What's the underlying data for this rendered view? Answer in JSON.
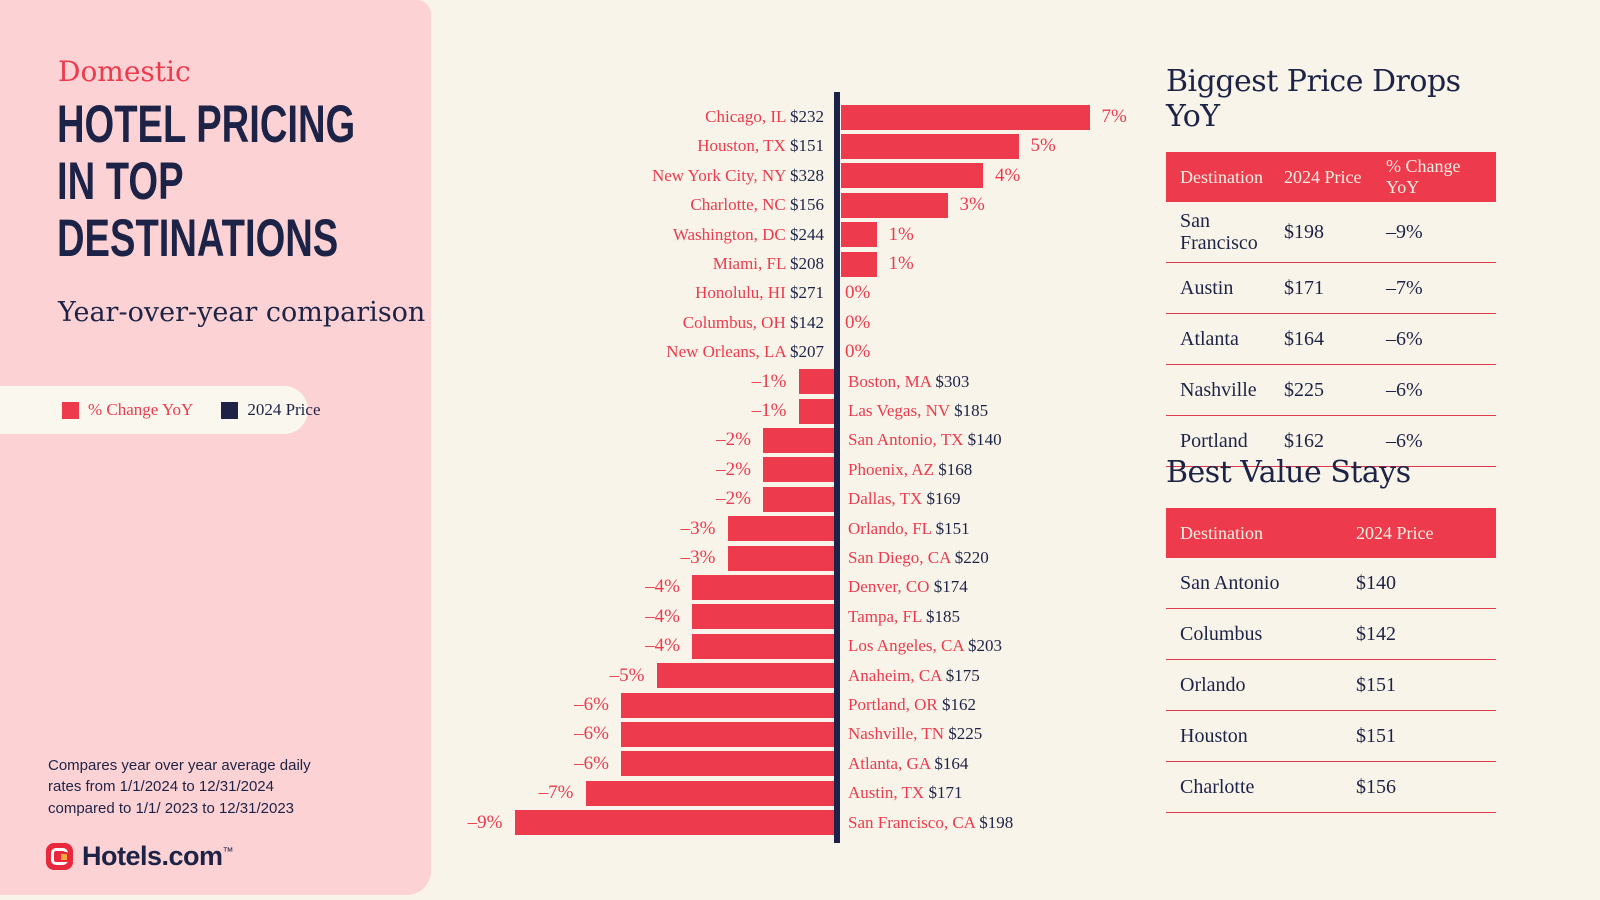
{
  "sidebar": {
    "eyebrow": "Domestic",
    "title_lines": [
      "HOTEL PRICING",
      "IN TOP",
      "DESTINATIONS"
    ],
    "subtitle": "Year-over-year comparison",
    "legend": {
      "pct_label": "% Change YoY",
      "price_label": "2024 Price"
    },
    "footnote_lines": [
      "Compares year over year average daily",
      "rates from 1/1/2024 to 12/31/2024",
      "compared to 1/1/ 2023 to 12/31/2023"
    ],
    "logo_text": "Hotels.com",
    "logo_tm": "™"
  },
  "colors": {
    "brand_red": "#ee3a4d",
    "navy": "#1d2346",
    "pink": "#fcd2d4",
    "cream": "#f8f4e9",
    "logo_yellow": "#f5a93d"
  },
  "chart_data": {
    "type": "bar",
    "orientation": "horizontal",
    "title": "Domestic Hotel Pricing in Top Destinations",
    "subtitle": "Year-over-year comparison",
    "xlabel": "% Change YoY",
    "xlim": [
      -9,
      7
    ],
    "grid": false,
    "legend_position": "left",
    "categories": [
      "Chicago, IL",
      "Houston, TX",
      "New York City, NY",
      "Charlotte, NC",
      "Washington, DC",
      "Miami, FL",
      "Honolulu, HI",
      "Columbus, OH",
      "New Orleans, LA",
      "Boston, MA",
      "Las Vegas, NV",
      "San Antonio, TX",
      "Phoenix, AZ",
      "Dallas, TX",
      "Orlando, FL",
      "San Diego, CA",
      "Denver, CO",
      "Tampa, FL",
      "Los Angeles, CA",
      "Anaheim, CA",
      "Portland, OR",
      "Nashville, TN",
      "Atlanta, GA",
      "Austin, TX",
      "San Francisco, CA"
    ],
    "series": [
      {
        "name": "% Change YoY",
        "values": [
          7,
          5,
          4,
          3,
          1,
          1,
          0,
          0,
          0,
          -1,
          -1,
          -2,
          -2,
          -2,
          -3,
          -3,
          -4,
          -4,
          -4,
          -5,
          -6,
          -6,
          -6,
          -7,
          -9
        ]
      },
      {
        "name": "2024 Price ($)",
        "values": [
          232,
          151,
          328,
          156,
          244,
          208,
          271,
          142,
          207,
          303,
          185,
          140,
          168,
          169,
          151,
          220,
          174,
          185,
          203,
          175,
          162,
          225,
          164,
          171,
          198
        ]
      }
    ],
    "rows": [
      {
        "city": "Chicago, IL",
        "price": "$232",
        "pct": 7,
        "pct_label": "7%"
      },
      {
        "city": "Houston, TX",
        "price": "$151",
        "pct": 5,
        "pct_label": "5%"
      },
      {
        "city": "New York City, NY",
        "price": "$328",
        "pct": 4,
        "pct_label": "4%"
      },
      {
        "city": "Charlotte, NC",
        "price": "$156",
        "pct": 3,
        "pct_label": "3%"
      },
      {
        "city": "Washington, DC",
        "price": "$244",
        "pct": 1,
        "pct_label": "1%"
      },
      {
        "city": "Miami, FL",
        "price": "$208",
        "pct": 1,
        "pct_label": "1%"
      },
      {
        "city": "Honolulu, HI",
        "price": "$271",
        "pct": 0,
        "pct_label": "0%"
      },
      {
        "city": "Columbus, OH",
        "price": "$142",
        "pct": 0,
        "pct_label": "0%"
      },
      {
        "city": "New Orleans, LA",
        "price": "$207",
        "pct": 0,
        "pct_label": "0%"
      },
      {
        "city": "Boston, MA",
        "price": "$303",
        "pct": -1,
        "pct_label": "–1%"
      },
      {
        "city": "Las Vegas, NV",
        "price": "$185",
        "pct": -1,
        "pct_label": "–1%"
      },
      {
        "city": "San Antonio, TX",
        "price": "$140",
        "pct": -2,
        "pct_label": "–2%"
      },
      {
        "city": "Phoenix, AZ",
        "price": "$168",
        "pct": -2,
        "pct_label": "–2%"
      },
      {
        "city": "Dallas, TX",
        "price": "$169",
        "pct": -2,
        "pct_label": "–2%"
      },
      {
        "city": "Orlando, FL",
        "price": "$151",
        "pct": -3,
        "pct_label": "–3%"
      },
      {
        "city": "San Diego, CA",
        "price": "$220",
        "pct": -3,
        "pct_label": "–3%"
      },
      {
        "city": "Denver, CO",
        "price": "$174",
        "pct": -4,
        "pct_label": "–4%"
      },
      {
        "city": "Tampa, FL",
        "price": "$185",
        "pct": -4,
        "pct_label": "–4%"
      },
      {
        "city": "Los Angeles, CA",
        "price": "$203",
        "pct": -4,
        "pct_label": "–4%"
      },
      {
        "city": "Anaheim, CA",
        "price": "$175",
        "pct": -5,
        "pct_label": "–5%"
      },
      {
        "city": "Portland, OR",
        "price": "$162",
        "pct": -6,
        "pct_label": "–6%"
      },
      {
        "city": "Nashville, TN",
        "price": "$225",
        "pct": -6,
        "pct_label": "–6%"
      },
      {
        "city": "Atlanta, GA",
        "price": "$164",
        "pct": -6,
        "pct_label": "–6%"
      },
      {
        "city": "Austin, TX",
        "price": "$171",
        "pct": -7,
        "pct_label": "–7%"
      },
      {
        "city": "San Francisco, CA",
        "price": "$198",
        "pct": -9,
        "pct_label": "–9%"
      }
    ]
  },
  "tables": [
    {
      "title": "Biggest Price Drops YoY",
      "columns": [
        "Destination",
        "2024 Price",
        "% Change YoY"
      ],
      "rows": [
        [
          "San Francisco",
          "$198",
          "–9%"
        ],
        [
          "Austin",
          "$171",
          "–7%"
        ],
        [
          "Atlanta",
          "$164",
          "–6%"
        ],
        [
          "Nashville",
          "$225",
          "–6%"
        ],
        [
          "Portland",
          "$162",
          "–6%"
        ]
      ]
    },
    {
      "title": "Best Value Stays",
      "columns": [
        "Destination",
        "2024 Price"
      ],
      "rows": [
        [
          "San Antonio",
          "$140"
        ],
        [
          "Columbus",
          "$142"
        ],
        [
          "Orlando",
          "$151"
        ],
        [
          "Houston",
          "$151"
        ],
        [
          "Charlotte",
          "$156"
        ]
      ]
    }
  ]
}
